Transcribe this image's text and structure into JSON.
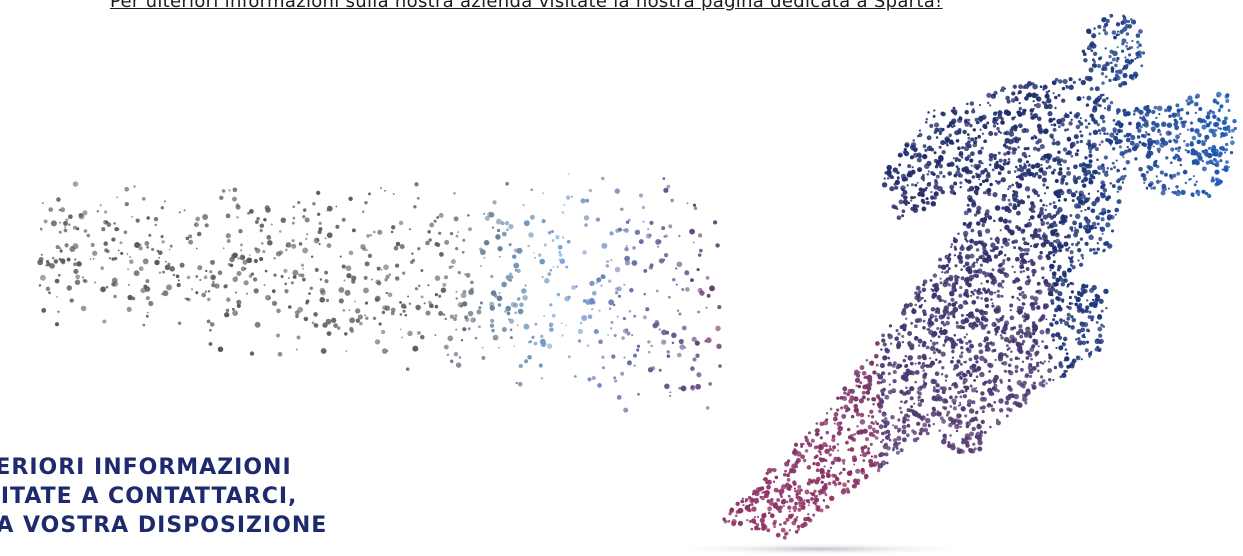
{
  "top_link": {
    "text": "Per ulteriori informazioni sulla nostra azienda visitate la nostra pagina dedicata a Sparta!"
  },
  "hero": {
    "image_icon": "running-athlete-particle-illustration",
    "colors": {
      "grey": "#5a5a5a",
      "blue_light": "#6fa3d8",
      "purple": "#5a3c72",
      "magenta": "#b02a5a",
      "navy": "#1e2c6a",
      "blue": "#1f5bb5"
    }
  },
  "info": {
    "line1": "LTERIORI INFORMAZIONI",
    "line2": "ESITATE A CONTATTARCI,",
    "line3": "O A VOSTRA DISPOSIZIONE"
  }
}
